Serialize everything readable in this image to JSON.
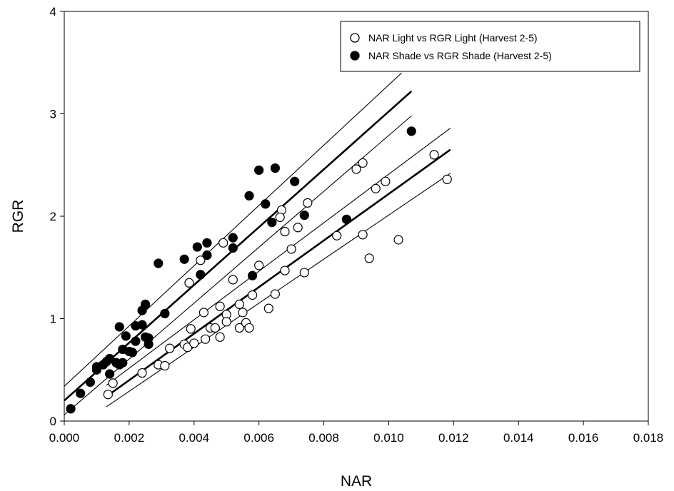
{
  "chart_data": {
    "type": "scatter",
    "xlabel": "NAR",
    "ylabel": "RGR",
    "xlim": [
      0,
      0.018
    ],
    "ylim": [
      0,
      4
    ],
    "x_ticks": [
      "0.000",
      "0.002",
      "0.004",
      "0.006",
      "0.008",
      "0.010",
      "0.012",
      "0.014",
      "0.016",
      "0.018"
    ],
    "y_ticks": [
      "0",
      "1",
      "2",
      "3",
      "4"
    ],
    "grid": false,
    "legend_position": "top-right",
    "series": [
      {
        "name": "NAR Light vs RGR Light (Harvest 2-5)",
        "marker": "open-circle",
        "color": "#000000",
        "points": [
          [
            0.00135,
            0.26
          ],
          [
            0.0015,
            0.37
          ],
          [
            0.0024,
            0.47
          ],
          [
            0.0029,
            0.55
          ],
          [
            0.0031,
            0.54
          ],
          [
            0.00325,
            0.71
          ],
          [
            0.0037,
            0.75
          ],
          [
            0.0038,
            0.72
          ],
          [
            0.0039,
            0.9
          ],
          [
            0.004,
            0.76
          ],
          [
            0.00385,
            1.35
          ],
          [
            0.0042,
            1.57
          ],
          [
            0.0043,
            1.06
          ],
          [
            0.00435,
            0.8
          ],
          [
            0.0045,
            0.91
          ],
          [
            0.00465,
            0.91
          ],
          [
            0.0048,
            0.82
          ],
          [
            0.0048,
            1.12
          ],
          [
            0.0049,
            1.74
          ],
          [
            0.005,
            1.04
          ],
          [
            0.005,
            0.97
          ],
          [
            0.0052,
            1.38
          ],
          [
            0.0054,
            0.91
          ],
          [
            0.0054,
            1.14
          ],
          [
            0.0055,
            1.06
          ],
          [
            0.0056,
            0.96
          ],
          [
            0.0057,
            0.91
          ],
          [
            0.0058,
            1.23
          ],
          [
            0.006,
            1.52
          ],
          [
            0.0063,
            1.1
          ],
          [
            0.0065,
            1.24
          ],
          [
            0.0067,
            2.06
          ],
          [
            0.00665,
            1.99
          ],
          [
            0.0068,
            1.47
          ],
          [
            0.0068,
            1.85
          ],
          [
            0.007,
            1.68
          ],
          [
            0.0072,
            1.89
          ],
          [
            0.0074,
            1.45
          ],
          [
            0.0075,
            2.13
          ],
          [
            0.0084,
            1.81
          ],
          [
            0.009,
            2.46
          ],
          [
            0.0092,
            2.52
          ],
          [
            0.0092,
            1.82
          ],
          [
            0.0094,
            1.59
          ],
          [
            0.0096,
            2.27
          ],
          [
            0.0099,
            2.34
          ],
          [
            0.0103,
            1.77
          ],
          [
            0.0114,
            2.6
          ],
          [
            0.0118,
            2.36
          ]
        ]
      },
      {
        "name": "NAR Shade vs RGR Shade (Harvest 2-5)",
        "marker": "filled-circle",
        "color": "#000000",
        "points": [
          [
            0.0002,
            0.12
          ],
          [
            0.0005,
            0.27
          ],
          [
            0.0008,
            0.38
          ],
          [
            0.001,
            0.5
          ],
          [
            0.001,
            0.53
          ],
          [
            0.0012,
            0.55
          ],
          [
            0.0013,
            0.58
          ],
          [
            0.0014,
            0.61
          ],
          [
            0.0014,
            0.46
          ],
          [
            0.0016,
            0.57
          ],
          [
            0.0017,
            0.55
          ],
          [
            0.0017,
            0.92
          ],
          [
            0.0018,
            0.7
          ],
          [
            0.0018,
            0.57
          ],
          [
            0.0019,
            0.83
          ],
          [
            0.002,
            0.68
          ],
          [
            0.0021,
            0.67
          ],
          [
            0.0022,
            0.93
          ],
          [
            0.0022,
            0.78
          ],
          [
            0.0024,
            0.94
          ],
          [
            0.0024,
            1.08
          ],
          [
            0.0025,
            1.14
          ],
          [
            0.0025,
            0.82
          ],
          [
            0.0026,
            0.81
          ],
          [
            0.0026,
            0.75
          ],
          [
            0.0029,
            1.54
          ],
          [
            0.0031,
            1.05
          ],
          [
            0.0037,
            1.58
          ],
          [
            0.0041,
            1.7
          ],
          [
            0.0042,
            1.43
          ],
          [
            0.0044,
            1.62
          ],
          [
            0.0044,
            1.74
          ],
          [
            0.0052,
            1.79
          ],
          [
            0.0052,
            1.69
          ],
          [
            0.0057,
            2.2
          ],
          [
            0.0058,
            1.42
          ],
          [
            0.006,
            2.45
          ],
          [
            0.0062,
            2.12
          ],
          [
            0.0064,
            1.94
          ],
          [
            0.0065,
            2.47
          ],
          [
            0.0071,
            2.34
          ],
          [
            0.0074,
            2.01
          ],
          [
            0.0087,
            1.97
          ],
          [
            0.0107,
            2.83
          ]
        ]
      }
    ],
    "regression_lines": [
      {
        "series": "NAR Light vs RGR Light (Harvest 2-5)",
        "role": "fit",
        "from": [
          0.0013,
          0.24
        ],
        "to": [
          0.0119,
          2.65
        ],
        "width": "thick"
      },
      {
        "series": "NAR Light vs RGR Light (Harvest 2-5)",
        "role": "ci-upper",
        "from": [
          0.0013,
          0.35
        ],
        "to": [
          0.0119,
          2.86
        ],
        "width": "thin"
      },
      {
        "series": "NAR Light vs RGR Light (Harvest 2-5)",
        "role": "ci-lower",
        "from": [
          0.0013,
          0.14
        ],
        "to": [
          0.0119,
          2.42
        ],
        "width": "thin"
      },
      {
        "series": "NAR Shade vs RGR Shade (Harvest 2-5)",
        "role": "fit",
        "from": [
          0.0,
          0.2
        ],
        "to": [
          0.0107,
          3.22
        ],
        "width": "thick"
      },
      {
        "series": "NAR Shade vs RGR Shade (Harvest 2-5)",
        "role": "ci-upper",
        "from": [
          0.0,
          0.34
        ],
        "to": [
          0.0104,
          3.4
        ],
        "width": "thin"
      },
      {
        "series": "NAR Shade vs RGR Shade (Harvest 2-5)",
        "role": "ci-lower",
        "from": [
          0.0,
          0.06
        ],
        "to": [
          0.0107,
          2.98
        ],
        "width": "thin"
      }
    ]
  }
}
